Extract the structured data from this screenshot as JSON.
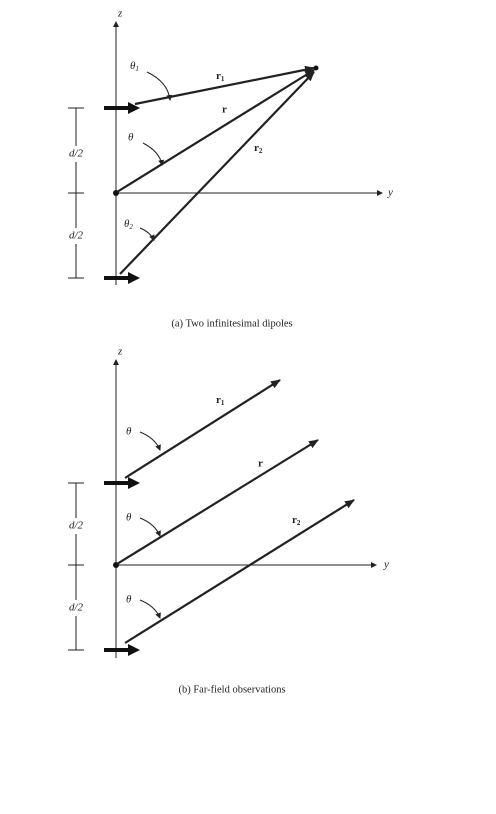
{
  "diagram_a": {
    "z_label": "z",
    "y_label": "y",
    "theta1": {
      "symbol": "θ",
      "sub": "1"
    },
    "theta": "θ",
    "theta2": {
      "symbol": "θ",
      "sub": "2"
    },
    "r1": {
      "symbol": "r",
      "sub": "1"
    },
    "r": "r",
    "r2": {
      "symbol": "r",
      "sub": "2"
    },
    "d_upper": "d/2",
    "d_lower": "d/2",
    "caption": "(a) Two infinitesimal dipoles"
  },
  "diagram_b": {
    "z_label": "z",
    "y_label": "y",
    "theta_top": "θ",
    "theta_mid": "θ",
    "theta_bottom": "θ",
    "r1": {
      "symbol": "r",
      "sub": "1"
    },
    "r": "r",
    "r2": {
      "symbol": "r",
      "sub": "2"
    },
    "d_upper": "d/2",
    "d_lower": "d/2",
    "caption": "(b) Far-field observations"
  }
}
